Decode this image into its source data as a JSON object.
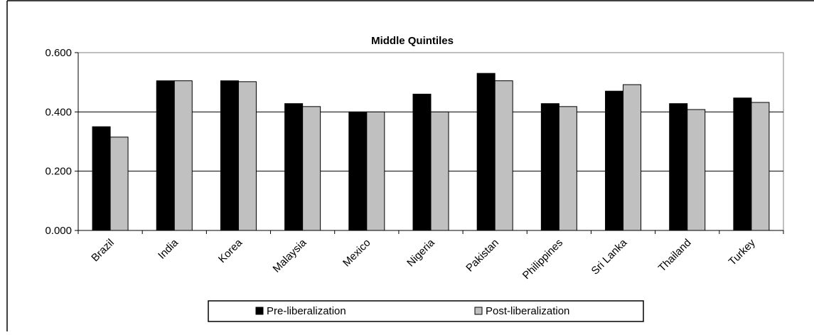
{
  "chart_data": {
    "type": "bar",
    "title": "Middle Quintiles",
    "xlabel": "",
    "ylabel": "",
    "categories": [
      "Brazil",
      "India",
      "Korea",
      "Malaysia",
      "Mexico",
      "Nigeria",
      "Pakistan",
      "Philippines",
      "Sri Lanka",
      "Thailand",
      "Turkey"
    ],
    "series": [
      {
        "name": "Pre-liberalization",
        "color": "#000000",
        "values": [
          0.35,
          0.505,
          0.505,
          0.428,
          0.4,
          0.46,
          0.53,
          0.428,
          0.47,
          0.428,
          0.447
        ]
      },
      {
        "name": "Post-liberalization",
        "color": "#c0c0c0",
        "values": [
          0.315,
          0.505,
          0.502,
          0.418,
          0.4,
          0.4,
          0.505,
          0.418,
          0.492,
          0.408,
          0.432
        ]
      }
    ],
    "ylim": [
      0,
      0.6
    ],
    "yticks": [
      0.0,
      0.2,
      0.4,
      0.6
    ],
    "ytick_labels": [
      "0.000",
      "0.200",
      "0.400",
      "0.600"
    ],
    "grid": true,
    "legend_position": "bottom"
  }
}
